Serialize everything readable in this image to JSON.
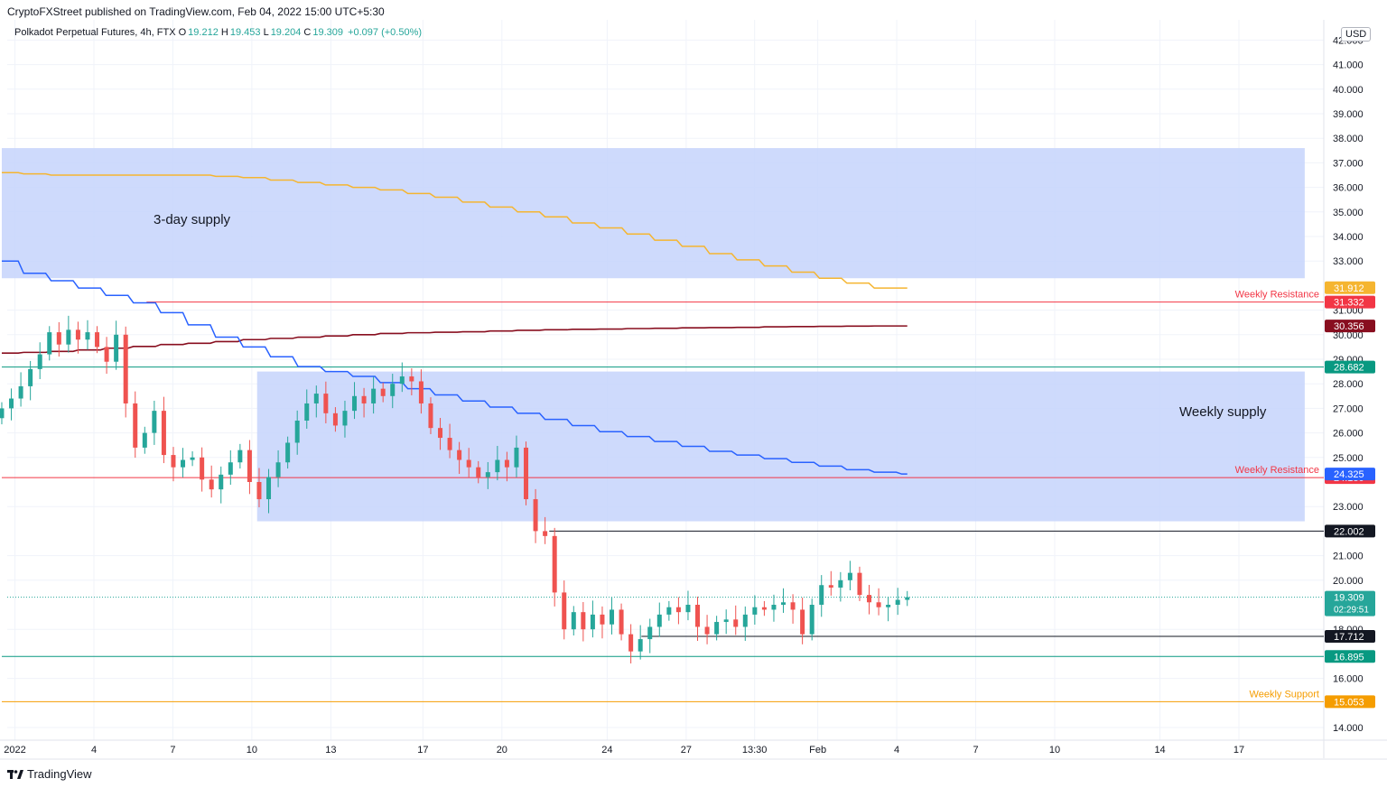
{
  "header": {
    "published": "CryptoFXStreet published on TradingView.com, Feb 04, 2022 15:00 UTC+5:30"
  },
  "legend": {
    "symbol": "Polkadot Perpetual Futures, 4h, FTX",
    "open_label": "O",
    "open": "19.212",
    "high_label": "H",
    "high": "19.453",
    "low_label": "L",
    "low": "19.204",
    "close_label": "C",
    "close": "19.309",
    "change": "+0.097 (+0.50%)"
  },
  "currency": "USD",
  "footer": {
    "logo_text": "TradingView",
    "logo_icon": "tradingview-logo-icon"
  },
  "colors": {
    "up": "#26a69a",
    "down": "#ef5350",
    "zone": "#c5d4fb",
    "yellow_ma": "#f5b530",
    "blue_ma": "#2962ff",
    "maroon_ma": "#880e1f",
    "weekly_resistance": "#f23645",
    "teal_level": "#089981",
    "black_level": "#131722",
    "weekly_support": "#f59d00"
  },
  "chart_data": {
    "type": "candlestick",
    "y_range": [
      13.4,
      42.6
    ],
    "y_ticks": [
      "14.000",
      "16.000",
      "18.000",
      "20.000",
      "21.000",
      "23.000",
      "25.000",
      "26.000",
      "27.000",
      "28.000",
      "29.000",
      "30.000",
      "31.000",
      "33.000",
      "34.000",
      "35.000",
      "36.000",
      "37.000",
      "38.000",
      "39.000",
      "40.000",
      "41.000",
      "42.000"
    ],
    "x_ticks": [
      {
        "label": "2022",
        "day": 1
      },
      {
        "label": "4",
        "day": 4
      },
      {
        "label": "7",
        "day": 7
      },
      {
        "label": "10",
        "day": 10
      },
      {
        "label": "13",
        "day": 13
      },
      {
        "label": "17",
        "day": 16.5
      },
      {
        "label": "20",
        "day": 19.5
      },
      {
        "label": "24",
        "day": 23.5
      },
      {
        "label": "27",
        "day": 26.5
      },
      {
        "label": "13:30",
        "day": 29.1
      },
      {
        "label": "Feb",
        "day": 31.5
      },
      {
        "label": "4",
        "day": 34.5
      },
      {
        "label": "7",
        "day": 37.5
      },
      {
        "label": "10",
        "day": 40.5
      },
      {
        "label": "14",
        "day": 44.5
      },
      {
        "label": "17",
        "day": 47.5
      }
    ],
    "zones": [
      {
        "name": "3-day supply",
        "label": "3-day supply",
        "from_day": 0.5,
        "to_day": 50,
        "low": 32.3,
        "high": 37.6
      },
      {
        "name": "Weekly supply",
        "label": "Weekly supply",
        "from_day": 10.2,
        "to_day": 50,
        "low": 22.4,
        "high": 28.5
      }
    ],
    "levels": [
      {
        "name": "weekly-resistance-upper",
        "value": 31.332,
        "tag": "31.332",
        "text": "Weekly Resistance",
        "color": "#f23645",
        "from_day": 6.0,
        "tag_bg": "#f23645"
      },
      {
        "name": "weekly-resistance-lower",
        "value": 24.18,
        "tag": "24.180",
        "text": "Weekly Resistance",
        "color": "#f23645",
        "from_day": 0.5,
        "tag_bg": "#f23645"
      },
      {
        "name": "level-28",
        "value": 28.682,
        "tag": "28.682",
        "text": "",
        "color": "#089981",
        "from_day": 0.5,
        "tag_bg": "#089981"
      },
      {
        "name": "level-22",
        "value": 22.002,
        "tag": "22.002",
        "text": "",
        "color": "#131722",
        "from_day": 21.3,
        "tag_bg": "#131722"
      },
      {
        "name": "level-17",
        "value": 17.712,
        "tag": "17.712",
        "text": "",
        "color": "#131722",
        "from_day": 24.8,
        "tag_bg": "#131722"
      },
      {
        "name": "level-16",
        "value": 16.895,
        "tag": "16.895",
        "text": "",
        "color": "#089981",
        "from_day": 0.5,
        "tag_bg": "#089981"
      },
      {
        "name": "weekly-support",
        "value": 15.053,
        "tag": "15.053",
        "text": "Weekly Support",
        "color": "#f59d00",
        "from_day": 0.5,
        "tag_bg": "#f59d00"
      }
    ],
    "ma_tags": [
      {
        "name": "yellow-ma-tag",
        "value": 31.912,
        "tag": "31.912",
        "bg": "#f5b530"
      },
      {
        "name": "maroon-ma-tag",
        "value": 30.356,
        "tag": "30.356",
        "bg": "#880e1f"
      },
      {
        "name": "blue-ma-tag",
        "value": 24.325,
        "tag": "24.325",
        "bg": "#2962ff"
      }
    ],
    "last_price": {
      "value": 19.309,
      "tag": "19.309",
      "countdown": "02:29:51",
      "bg": "#26a69a"
    },
    "series": {
      "yellow_ma": {
        "start_day": 0.5,
        "end_day": 34.9,
        "values": [
          36.6,
          36.55,
          36.5,
          36.5,
          36.5,
          36.5,
          36.5,
          36.5,
          36.45,
          36.4,
          36.3,
          36.2,
          36.1,
          36.0,
          35.9,
          35.75,
          35.6,
          35.4,
          35.2,
          35.0,
          34.8,
          34.55,
          34.35,
          34.1,
          33.85,
          33.6,
          33.3,
          33.05,
          32.8,
          32.55,
          32.3,
          32.1,
          31.9,
          31.9
        ]
      },
      "maroon_ma": {
        "start_day": 0.5,
        "end_day": 34.9,
        "values": [
          29.25,
          29.28,
          29.32,
          29.38,
          29.45,
          29.52,
          29.6,
          29.65,
          29.72,
          29.8,
          29.85,
          29.9,
          29.95,
          30.0,
          30.05,
          30.08,
          30.1,
          30.12,
          30.15,
          30.18,
          30.2,
          30.22,
          30.23,
          30.25,
          30.26,
          30.28,
          30.29,
          30.3,
          30.32,
          30.33,
          30.34,
          30.35,
          30.356,
          30.356
        ]
      },
      "blue_ma": {
        "start_day": 0.5,
        "end_day": 34.9,
        "values": [
          33.0,
          32.5,
          32.2,
          31.9,
          31.6,
          31.3,
          30.9,
          30.4,
          29.9,
          29.5,
          29.1,
          28.7,
          28.5,
          28.3,
          28.05,
          27.8,
          27.55,
          27.3,
          27.05,
          26.8,
          26.55,
          26.3,
          26.05,
          25.85,
          25.65,
          25.45,
          25.25,
          25.1,
          24.95,
          24.8,
          24.65,
          24.5,
          24.4,
          24.325
        ]
      }
    },
    "closes": [
      27.0,
      27.4,
      27.9,
      28.6,
      29.2,
      30.1,
      29.6,
      30.2,
      29.8,
      30.1,
      29.5,
      28.9,
      30.0,
      27.2,
      25.4,
      26.0,
      26.9,
      25.1,
      24.6,
      24.9,
      25.0,
      24.1,
      23.7,
      24.3,
      24.8,
      25.3,
      24.0,
      23.3,
      24.2,
      24.8,
      25.6,
      26.5,
      27.2,
      27.6,
      26.8,
      26.3,
      26.9,
      27.5,
      27.2,
      27.8,
      27.5,
      28.0,
      28.3,
      28.1,
      27.2,
      26.2,
      25.8,
      25.3,
      24.9,
      24.6,
      24.2,
      24.4,
      24.9,
      24.6,
      25.4,
      23.3,
      22.0,
      21.8,
      19.5,
      18.0,
      18.7,
      18.0,
      18.6,
      18.2,
      18.8,
      17.8,
      17.1,
      17.6,
      18.1,
      18.6,
      18.9,
      18.7,
      19.0,
      18.1,
      17.8,
      18.3,
      18.4,
      18.1,
      18.6,
      18.9,
      18.8,
      19.0,
      19.1,
      18.8,
      17.8,
      19.0,
      19.8,
      19.7,
      20.0,
      20.3,
      19.4,
      19.1,
      18.9,
      19.0,
      19.2,
      19.309
    ]
  }
}
